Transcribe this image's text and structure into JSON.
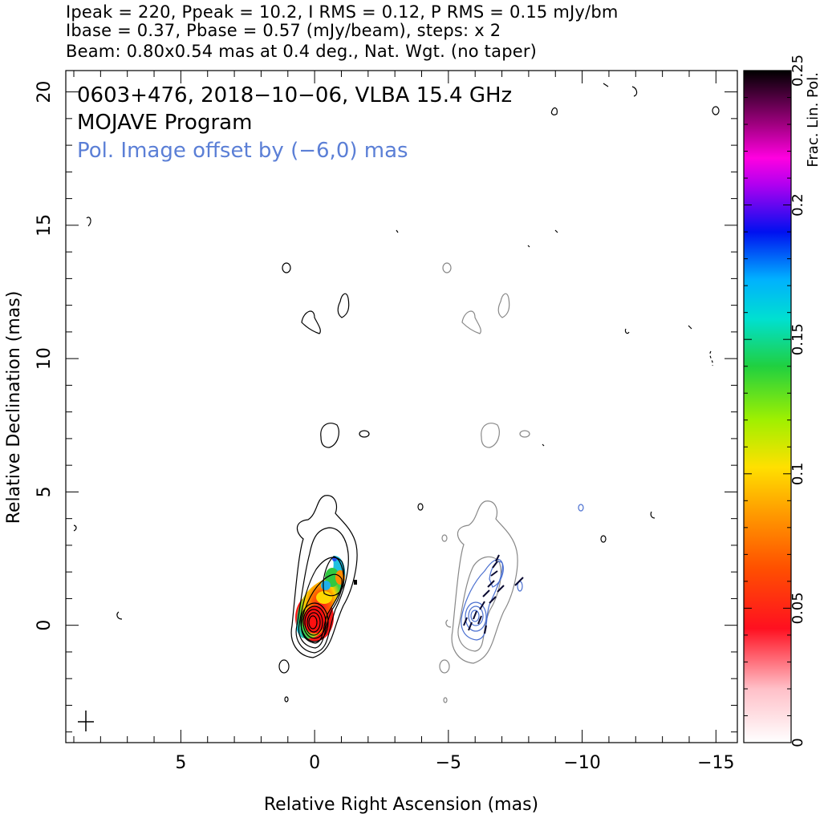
{
  "header": {
    "line1": "Ipeak = 220, Ppeak = 10.2, I RMS = 0.12, P RMS = 0.15 mJy/bm",
    "line2": "Ibase = 0.37, Pbase = 0.57 (mJy/beam), steps: x 2",
    "line3": "Beam: 0.80x0.54 mas at 0.4 deg., Nat. Wgt. (no taper)"
  },
  "plot_text": {
    "source_line": "0603+476, 2018−10−06, VLBA 15.4 GHz",
    "program_line": "MOJAVE Program",
    "offset_line": "Pol. Image offset by (−6,0) mas"
  },
  "colors": {
    "total_intensity_contours": "#000000",
    "offset_total_intensity_contours": "#808080",
    "pol_intensity_contours": "#4a6fd0",
    "evpa_ticks": "#000033",
    "offset_text": "#5b7fd6"
  },
  "chart_data": {
    "type": "heatmap",
    "title": "0603+476, 2018−10−06, VLBA 15.4 GHz",
    "xlabel": "Relative Right Ascension (mas)",
    "ylabel": "Relative Declination (mas)",
    "xlim": [
      9.3,
      -15.8
    ],
    "ylim": [
      -4.4,
      20.8
    ],
    "xticks": [
      5,
      0,
      -5,
      -10,
      -15
    ],
    "xtick_labels": [
      "5",
      "0",
      "−5",
      "−10",
      "−15"
    ],
    "yticks": [
      0,
      5,
      10,
      15,
      20
    ],
    "ytick_labels": [
      "0",
      "5",
      "10",
      "15",
      "20"
    ],
    "colorbar": {
      "label": "Frac. Lin. Pol.",
      "range": [
        0,
        0.25
      ],
      "ticks": [
        0,
        0.05,
        0.1,
        0.15,
        0.2,
        0.25
      ],
      "tick_labels": [
        "0",
        "0.05",
        "0.1",
        "0.15",
        "0.2",
        "0.25"
      ]
    },
    "beam": {
      "major_mas": 0.8,
      "minor_mas": 0.54,
      "pa_deg": 0.4
    },
    "core": {
      "ra": 0,
      "dec": 0
    },
    "pol_offset_mas": [
      -6,
      0
    ],
    "frac_pol_regions": [
      {
        "ra": 0.0,
        "dec": 0.0,
        "value": 0.025
      },
      {
        "ra": -0.25,
        "dec": 0.7,
        "value": 0.08
      },
      {
        "ra": -0.5,
        "dec": 1.3,
        "value": 0.14
      },
      {
        "ra": -0.8,
        "dec": 1.8,
        "value": 0.11
      },
      {
        "ra": -1.0,
        "dec": 1.7,
        "value": 0.07
      }
    ]
  }
}
